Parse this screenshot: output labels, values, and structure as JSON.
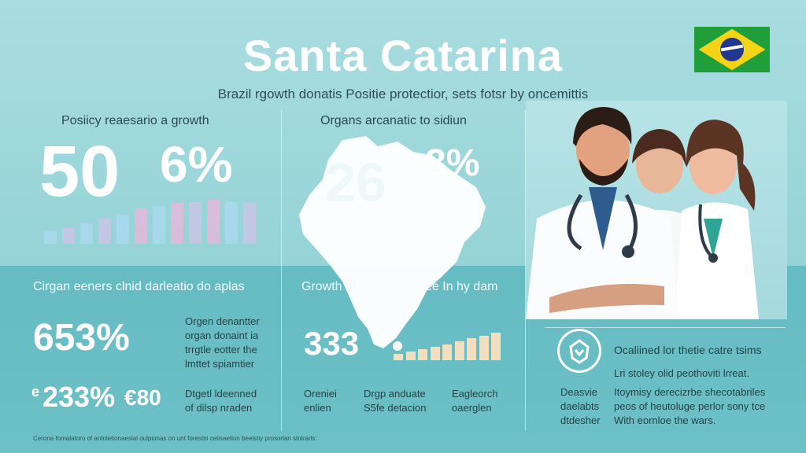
{
  "header": {
    "title": "Santa Catarina",
    "subtitle": "Brazil rgowth donatis Positie protectior, sets fotsr by oncemittis"
  },
  "flag": {
    "name": "brazil-flag-icon",
    "colors": [
      "#1f9e3a",
      "#f5d416",
      "#23378f"
    ]
  },
  "panel_left": {
    "label": "Posiicy reaesario a growth",
    "stat_a": "50",
    "stat_b": "6%",
    "bars": [
      0.25,
      0.32,
      0.42,
      0.52,
      0.6,
      0.72,
      0.78,
      0.84,
      0.86,
      0.9,
      0.86,
      0.84
    ],
    "bar_colors": [
      "#a9d8ef",
      "#c9c4e6",
      "#a9d8ef",
      "#c9c4e6",
      "#a9d8ef",
      "#e3b8dc",
      "#a9d8ef",
      "#e3b8dc",
      "#c9c4e6",
      "#e3b8dc",
      "#a9d8ef",
      "#c9c4e6"
    ]
  },
  "panel_middle": {
    "label": "Organs arcanatic to sidiun",
    "stat_a": "26",
    "stat_b": "8%"
  },
  "panel_bottom_left": {
    "label": "Cirgan eeners clnid darleatio do aplas",
    "stat_main": "653%",
    "stat_main_note": "Orgen denantter\norgan donaint ia\ntrrgtle eotter the\nlmttet spiamtier",
    "stat_second": "233%",
    "stat_second_prefix": "e",
    "stat_second_suffix": "€80",
    "stat_second_note": "Dtgetl ldeenned\nof dilsp nraden"
  },
  "panel_bottom_middle": {
    "label": "Growth th",
    "label_tail": "ee In hy dam",
    "stat": "333",
    "bars": [
      0.22,
      0.3,
      0.38,
      0.44,
      0.52,
      0.62,
      0.74,
      0.82,
      0.92
    ],
    "bar_color": "#f1dfbf",
    "col1": "Oreniei\nenlien",
    "col2": "Drgp anduate\nS5fe detacion",
    "col3": "Eagleorch\noaerglen"
  },
  "panel_bottom_right": {
    "icon": "organ-donation-icon",
    "heading": "Ocaliined lor thetie catre tsims",
    "line": "Lri stoley olid peothoviti lrreat.",
    "side": "Deasvie\ndaelabts\ndtdesher",
    "para": "Itoymisy derecizrbe shecotabriles\npeos of heutoluge perlor sony tce\nWith eornloe the wars."
  },
  "footer": "Cerona fomalatoro of antoletionaesial oulpionas on unt forestbi cetisaetion beelstiy prosorlan stntrarls:"
}
